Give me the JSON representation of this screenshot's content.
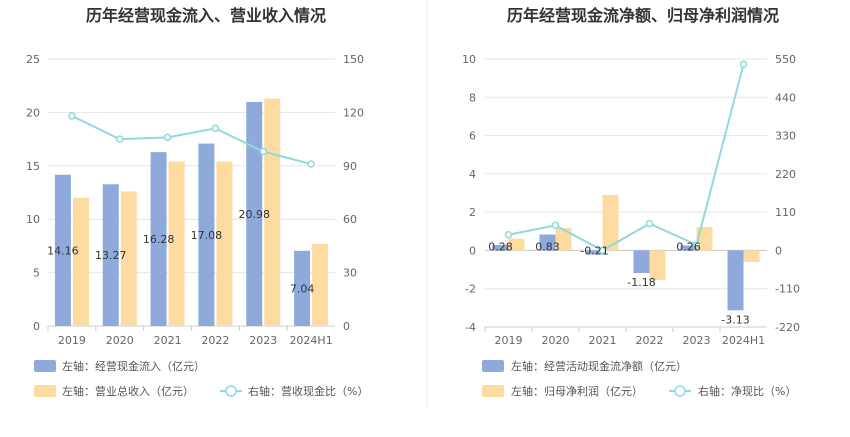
{
  "chart_data": [
    {
      "type": "bar",
      "title": "历年经营现金流入、营业收入情况",
      "categories": [
        "2019",
        "2020",
        "2021",
        "2022",
        "2023",
        "2024H1"
      ],
      "left_axis": {
        "ylim": [
          0,
          25
        ],
        "ticks": [
          "0",
          "5",
          "10",
          "15",
          "20",
          "25"
        ]
      },
      "right_axis": {
        "ylim": [
          0,
          150
        ],
        "ticks": [
          "0",
          "30",
          "60",
          "90",
          "120",
          "150"
        ]
      },
      "series": [
        {
          "name": "左轴：经营现金流入（亿元）",
          "kind": "bar",
          "axis": "left",
          "color": "#8eaadb",
          "values": [
            14.16,
            13.27,
            16.28,
            17.08,
            20.98,
            7.04
          ],
          "labels": [
            "14.16",
            "13.27",
            "16.28",
            "17.08",
            "20.98",
            "7.04"
          ]
        },
        {
          "name": "左轴：营业总收入（亿元）",
          "kind": "bar",
          "axis": "left",
          "color": "#fddba1",
          "values": [
            12.0,
            12.6,
            15.4,
            15.4,
            21.3,
            7.7
          ]
        },
        {
          "name": "右轴：营收现金比（%）",
          "kind": "line",
          "axis": "right",
          "color": "#8fd9df",
          "values": [
            118,
            105,
            106,
            111,
            98,
            91
          ]
        }
      ]
    },
    {
      "type": "bar",
      "title": "历年经营现金流净额、归母净利润情况",
      "categories": [
        "2019",
        "2020",
        "2021",
        "2022",
        "2023",
        "2024H1"
      ],
      "left_axis": {
        "ylim": [
          -4,
          10
        ],
        "ticks": [
          "-4",
          "-2",
          "0",
          "2",
          "4",
          "6",
          "8",
          "10"
        ]
      },
      "right_axis": {
        "ylim": [
          -220,
          550
        ],
        "ticks": [
          "-220",
          "-110",
          "0",
          "110",
          "220",
          "330",
          "440",
          "550"
        ]
      },
      "series": [
        {
          "name": "左轴：经营活动现金流净额（亿元）",
          "kind": "bar",
          "axis": "left",
          "color": "#8eaadb",
          "values": [
            0.28,
            0.83,
            -0.21,
            -1.18,
            0.26,
            -3.13
          ],
          "labels": [
            "0.28",
            "0.83",
            "-0.21",
            "-1.18",
            "0.26",
            "-3.13"
          ]
        },
        {
          "name": "左轴：归母净利润（亿元）",
          "kind": "bar",
          "axis": "left",
          "color": "#fddba1",
          "values": [
            0.62,
            1.18,
            2.9,
            -1.55,
            1.22,
            -0.6
          ]
        },
        {
          "name": "右轴：净现比（%）",
          "kind": "line",
          "axis": "right",
          "color": "#8fd9df",
          "values": [
            45,
            72,
            0,
            77,
            16,
            535
          ]
        }
      ]
    }
  ]
}
